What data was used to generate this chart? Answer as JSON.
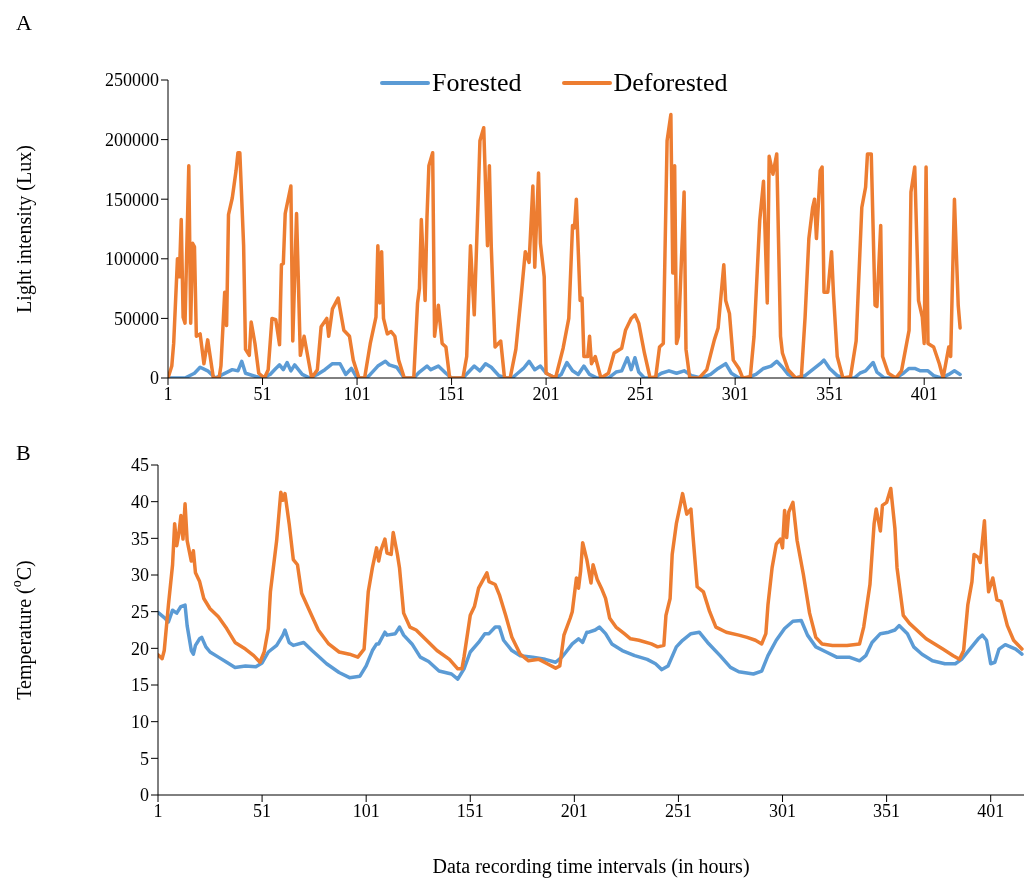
{
  "chart_data": [
    {
      "type": "line",
      "title": "A",
      "ylabel": "Light intensity (Lux)",
      "xlim": [
        1,
        421
      ],
      "xticks": [
        1,
        51,
        101,
        151,
        201,
        251,
        301,
        351,
        401
      ],
      "ylim": [
        0,
        250000
      ],
      "yticks": [
        0,
        50000,
        100000,
        150000,
        200000,
        250000
      ],
      "legend": "top",
      "line_style": "solid",
      "series": [
        {
          "name": "Forested",
          "color": "#5b9bd5",
          "x": [
            1,
            10,
            15,
            18,
            22,
            26,
            30,
            35,
            38,
            40,
            42,
            48,
            51,
            55,
            58,
            60,
            62,
            64,
            66,
            68,
            72,
            76,
            80,
            84,
            88,
            92,
            95,
            98,
            101,
            106,
            108,
            112,
            116,
            118,
            122,
            126,
            131,
            134,
            138,
            140,
            144,
            148,
            151,
            157,
            160,
            163,
            166,
            169,
            172,
            176,
            180,
            183,
            186,
            189,
            192,
            195,
            198,
            201,
            206,
            209,
            212,
            215,
            218,
            221,
            224,
            228,
            234,
            238,
            241,
            244,
            246,
            248,
            250,
            253,
            258,
            262,
            266,
            270,
            274,
            278,
            283,
            288,
            292,
            296,
            299,
            303,
            307,
            312,
            316,
            320,
            323,
            326,
            329,
            333,
            338,
            342,
            346,
            348,
            351,
            355,
            359,
            364,
            367,
            370,
            374,
            376,
            380,
            386,
            390,
            393,
            396,
            399,
            403,
            406,
            410,
            414,
            417,
            420
          ],
          "values": [
            0,
            0,
            4000,
            9000,
            6000,
            0,
            3000,
            7000,
            6000,
            14000,
            4000,
            1000,
            0,
            3000,
            8000,
            11000,
            7000,
            13000,
            6000,
            11000,
            3000,
            0,
            3000,
            7000,
            12000,
            12000,
            3000,
            8000,
            0,
            0,
            3000,
            10000,
            14000,
            11000,
            9000,
            0,
            0,
            5000,
            10000,
            7000,
            10000,
            4000,
            0,
            0,
            5000,
            10000,
            6000,
            12000,
            9000,
            2000,
            0,
            0,
            4000,
            8000,
            14000,
            7000,
            10000,
            4000,
            0,
            3000,
            13000,
            6000,
            3000,
            10000,
            3000,
            0,
            0,
            5000,
            6000,
            17000,
            7000,
            17000,
            5000,
            0,
            0,
            4000,
            6000,
            4000,
            6000,
            2000,
            0,
            3000,
            8000,
            12000,
            4000,
            0,
            0,
            3000,
            8000,
            10000,
            14000,
            9000,
            3000,
            0,
            2000,
            7000,
            12000,
            15000,
            8000,
            2000,
            0,
            0,
            4000,
            6000,
            13000,
            5000,
            0,
            0,
            4000,
            8000,
            8000,
            6000,
            6000,
            2000,
            0,
            3000,
            6000,
            3000
          ]
        },
        {
          "name": "Deforested",
          "color": "#ed7d31",
          "x": [
            1,
            3,
            4,
            6,
            7,
            8,
            9,
            10,
            11,
            12,
            13,
            14,
            15,
            16,
            18,
            20,
            22,
            25,
            28,
            29,
            31,
            32,
            33,
            35,
            37,
            38,
            39,
            41,
            42,
            44,
            45,
            47,
            49,
            52,
            54,
            56,
            58,
            60,
            61,
            62,
            63,
            66,
            67,
            69,
            71,
            73,
            77,
            80,
            82,
            85,
            86,
            88,
            91,
            94,
            97,
            99,
            102,
            105,
            108,
            111,
            112,
            113,
            114,
            115,
            117,
            119,
            121,
            123,
            126,
            131,
            133,
            134,
            135,
            137,
            138,
            139,
            141,
            142,
            144,
            146,
            148,
            150,
            157,
            159,
            161,
            163,
            165,
            166,
            168,
            170,
            171,
            172,
            174,
            177,
            179,
            182,
            185,
            188,
            190,
            192,
            194,
            195,
            197,
            198,
            200,
            201,
            206,
            210,
            213,
            215,
            216,
            217,
            219,
            220,
            221,
            223,
            224,
            225,
            227,
            230,
            234,
            237,
            241,
            243,
            246,
            248,
            250,
            253,
            256,
            259,
            261,
            263,
            265,
            267,
            268,
            269,
            270,
            271,
            274,
            275,
            277,
            282,
            286,
            290,
            292,
            295,
            296,
            298,
            300,
            303,
            305,
            309,
            311,
            314,
            316,
            318,
            319,
            321,
            323,
            325,
            326,
            329,
            333,
            336,
            338,
            340,
            342,
            343,
            344,
            346,
            347,
            348,
            350,
            352,
            353,
            355,
            358,
            362,
            365,
            368,
            370,
            371,
            373,
            375,
            376,
            378,
            379,
            382,
            386,
            389,
            393,
            394,
            396,
            398,
            400,
            401,
            402,
            403,
            406,
            409,
            411,
            414,
            415,
            417,
            419,
            420
          ],
          "values": [
            0,
            10000,
            29000,
            100000,
            85000,
            133000,
            51000,
            46000,
            113000,
            178000,
            46000,
            113000,
            110000,
            35000,
            37000,
            12000,
            32000,
            0,
            0,
            10000,
            72000,
            44000,
            137000,
            151000,
            174000,
            189000,
            189000,
            111000,
            24000,
            19000,
            47000,
            29000,
            4000,
            0,
            7000,
            50000,
            49000,
            28000,
            95000,
            96000,
            138000,
            161000,
            31000,
            138000,
            19000,
            35000,
            0,
            7000,
            43000,
            50000,
            35000,
            58000,
            67000,
            40000,
            35000,
            15000,
            0,
            0,
            29000,
            51000,
            111000,
            63000,
            106000,
            50000,
            37000,
            39000,
            35000,
            15000,
            0,
            0,
            63000,
            75000,
            133000,
            65000,
            135000,
            178000,
            189000,
            35000,
            61000,
            29000,
            26000,
            0,
            0,
            18000,
            111000,
            53000,
            147000,
            199000,
            210000,
            111000,
            178000,
            110000,
            26000,
            31000,
            0,
            0,
            24000,
            72000,
            106000,
            97000,
            161000,
            93000,
            172000,
            113000,
            85000,
            4000,
            0,
            25000,
            50000,
            128000,
            126000,
            150000,
            65000,
            67000,
            18000,
            18000,
            35000,
            12000,
            18000,
            0,
            4000,
            21000,
            25000,
            40000,
            50000,
            53000,
            46000,
            21000,
            0,
            1000,
            26000,
            29000,
            199000,
            221000,
            88000,
            178000,
            29000,
            35000,
            156000,
            24000,
            0,
            0,
            7000,
            32000,
            42000,
            95000,
            65000,
            54000,
            15000,
            8000,
            0,
            1000,
            35000,
            132000,
            165000,
            63000,
            186000,
            171000,
            188000,
            35000,
            21000,
            7000,
            0,
            1000,
            51000,
            117000,
            143000,
            150000,
            117000,
            174000,
            177000,
            72000,
            72000,
            106000,
            71000,
            18000,
            0,
            1000,
            31000,
            143000,
            160000,
            188000,
            188000,
            61000,
            60000,
            128000,
            18000,
            4000,
            0,
            6000,
            40000,
            156000,
            177000,
            65000,
            51000,
            29000,
            177000,
            29000,
            26000,
            12000,
            0,
            26000,
            18000,
            150000,
            61000,
            42000
          ]
        }
      ]
    },
    {
      "type": "line",
      "title": "B",
      "xlabel": "Data recording time intervals (in hours)",
      "ylabel": "Temperature ($^{o}$C)",
      "xlim": [
        1,
        417
      ],
      "xticks": [
        1,
        51,
        101,
        151,
        201,
        251,
        301,
        351,
        401
      ],
      "ylim": [
        0,
        45
      ],
      "yticks": [
        0,
        5,
        10,
        15,
        20,
        25,
        30,
        35,
        40,
        45
      ],
      "line_style": "solid",
      "series": [
        {
          "color": "#5b9bd5",
          "x": [
            1,
            4,
            6,
            8,
            10,
            12,
            14,
            15,
            17,
            18,
            19,
            21,
            22,
            24,
            26,
            30,
            34,
            38,
            43,
            48,
            51,
            54,
            58,
            61,
            62,
            64,
            66,
            71,
            75,
            82,
            88,
            93,
            98,
            101,
            104,
            106,
            107,
            110,
            111,
            115,
            117,
            119,
            123,
            127,
            131,
            136,
            142,
            145,
            148,
            151,
            155,
            158,
            160,
            163,
            165,
            167,
            171,
            175,
            181,
            187,
            192,
            195,
            197,
            200,
            203,
            205,
            207,
            208,
            211,
            213,
            216,
            219,
            224,
            230,
            236,
            240,
            243,
            246,
            250,
            253,
            257,
            261,
            265,
            271,
            276,
            280,
            287,
            291,
            294,
            298,
            302,
            306,
            310,
            313,
            317,
            322,
            327,
            333,
            338,
            341,
            344,
            348,
            352,
            355,
            357,
            361,
            364,
            368,
            373,
            379,
            384,
            387,
            391,
            395,
            397,
            399,
            401,
            403,
            405,
            408,
            413,
            416
          ],
          "values": [
            24.9,
            24.2,
            23.6,
            25.2,
            24.8,
            25.7,
            25.9,
            23.1,
            19.7,
            19.2,
            20.4,
            21.3,
            21.5,
            20.2,
            19.5,
            18.8,
            18.1,
            17.4,
            17.6,
            17.5,
            18,
            19.5,
            20.4,
            21.8,
            22.5,
            20.8,
            20.4,
            20.8,
            19.7,
            17.9,
            16.7,
            16,
            16.2,
            17.6,
            19.7,
            20.6,
            20.6,
            22.2,
            21.8,
            22,
            22.9,
            21.8,
            20.6,
            18.8,
            18.2,
            16.9,
            16.5,
            15.8,
            17.2,
            19.5,
            20.8,
            22,
            22,
            22.9,
            22.9,
            21.1,
            19.7,
            19,
            18.8,
            18.5,
            18.1,
            18.8,
            19.5,
            20.6,
            21.3,
            20.8,
            22.2,
            22.2,
            22.5,
            22.9,
            22,
            20.6,
            19.7,
            19,
            18.5,
            17.9,
            17.1,
            17.6,
            20.2,
            21.1,
            22,
            22.2,
            20.8,
            19,
            17.4,
            16.8,
            16.5,
            16.9,
            19,
            21.1,
            22.7,
            23.7,
            23.8,
            21.8,
            20.2,
            19.5,
            18.8,
            18.8,
            18.3,
            19,
            20.8,
            22,
            22.2,
            22.5,
            23.1,
            22,
            20.2,
            19.2,
            18.3,
            17.9,
            17.9,
            18.5,
            19.9,
            21.3,
            21.8,
            21.1,
            17.9,
            18.1,
            19.9,
            20.5,
            19.9,
            19.2
          ]
        },
        {
          "color": "#ed7d31",
          "x": [
            1,
            3,
            4,
            6,
            8,
            9,
            10,
            11,
            12,
            13,
            14,
            15,
            17,
            18,
            19,
            21,
            23,
            26,
            30,
            34,
            38,
            43,
            47,
            50,
            52,
            54,
            55,
            58,
            60,
            61,
            62,
            64,
            66,
            68,
            70,
            74,
            78,
            83,
            88,
            93,
            97,
            100,
            102,
            104,
            106,
            107,
            108,
            110,
            111,
            113,
            114,
            116,
            117,
            119,
            122,
            125,
            130,
            135,
            141,
            145,
            147,
            148,
            151,
            153,
            155,
            159,
            160,
            163,
            165,
            168,
            171,
            175,
            179,
            184,
            188,
            192,
            194,
            196,
            199,
            200,
            202,
            203,
            204,
            205,
            207,
            209,
            210,
            212,
            214,
            216,
            218,
            221,
            225,
            228,
            232,
            238,
            241,
            244,
            245,
            247,
            248,
            250,
            252,
            253,
            255,
            257,
            258,
            260,
            263,
            266,
            269,
            274,
            280,
            284,
            288,
            291,
            293,
            294,
            296,
            298,
            300,
            301,
            302,
            303,
            304,
            306,
            308,
            311,
            314,
            317,
            320,
            325,
            332,
            338,
            340,
            343,
            345,
            346,
            348,
            349,
            351,
            353,
            355,
            356,
            359,
            362,
            370,
            378,
            383,
            386,
            388,
            390,
            392,
            393,
            395,
            396,
            398,
            399,
            400,
            402,
            404,
            406,
            409,
            412,
            416
          ],
          "values": [
            19.1,
            18.6,
            19.7,
            25.9,
            31.4,
            37,
            34,
            35.6,
            38.1,
            34.9,
            39.7,
            34.7,
            31.9,
            33.3,
            30.3,
            29.1,
            26.8,
            25.4,
            24.3,
            22.7,
            20.8,
            19.9,
            19,
            18.1,
            19.5,
            22.7,
            27.7,
            34.7,
            41.3,
            40.2,
            41.1,
            37,
            32.1,
            31.4,
            27.5,
            25,
            22.5,
            20.6,
            19.5,
            19.2,
            18.8,
            19.9,
            27.7,
            31,
            33.7,
            31.9,
            33.3,
            34.9,
            33,
            32.8,
            35.8,
            32.8,
            31,
            24.8,
            22.9,
            22.5,
            21.1,
            19.7,
            18.5,
            17.2,
            17.2,
            18.8,
            24.5,
            25.7,
            28.2,
            30.3,
            29.1,
            28.7,
            27.3,
            24.5,
            21.5,
            19.2,
            18.3,
            18.5,
            17.9,
            17.3,
            17.6,
            21.8,
            24.1,
            25,
            29.6,
            28.2,
            30.5,
            34.4,
            32.1,
            28.9,
            31.4,
            29.4,
            28.2,
            26.8,
            24.1,
            22.9,
            22,
            21.3,
            21.1,
            20.6,
            20.2,
            20.4,
            24.5,
            26.8,
            32.8,
            37,
            39.7,
            41.1,
            38.3,
            39,
            35.3,
            28.4,
            27.7,
            25,
            22.9,
            22.2,
            21.8,
            21.5,
            21.1,
            20.6,
            22,
            25.9,
            31,
            34.2,
            34.9,
            33.7,
            38.8,
            35.1,
            38.6,
            39.9,
            34.7,
            30.1,
            24.8,
            21.5,
            20.6,
            20.4,
            20.4,
            20.6,
            22.9,
            28.7,
            37,
            39,
            36,
            39.5,
            39.9,
            41.8,
            36.3,
            31,
            24.5,
            23.4,
            21.3,
            19.9,
            19,
            18.5,
            19.7,
            25.9,
            29.1,
            32.8,
            32.4,
            31.7,
            37.4,
            31.4,
            27.7,
            29.6,
            26.6,
            26.4,
            23.1,
            21.1,
            19.9
          ]
        }
      ]
    }
  ]
}
